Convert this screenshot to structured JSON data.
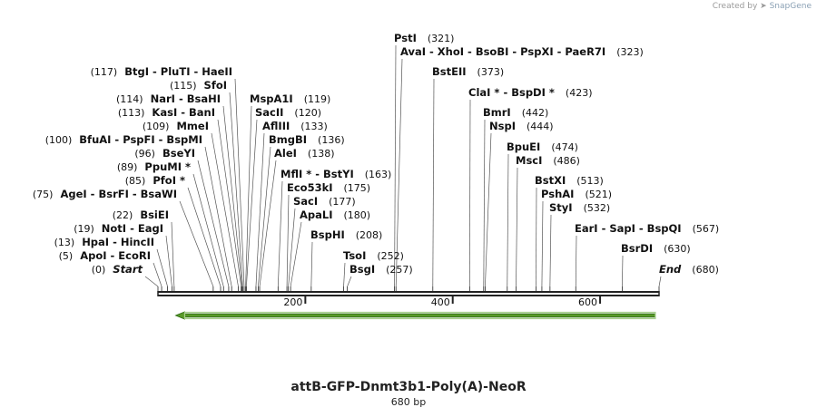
{
  "credit": {
    "prefix": "Created by",
    "brand": "SnapGene",
    "icon": "snapgene-logo-icon"
  },
  "title": "attB-GFP-Dnmt3b1-Poly(A)-NeoR",
  "subtitle": "680 bp",
  "colors": {
    "line": "#222222",
    "text": "#111111",
    "arrow_fill": "#a8d08d",
    "arrow_stroke": "#5a9a2a",
    "arrow_outline": "#2a6a10"
  },
  "axis": {
    "start": 0,
    "end": 680,
    "ticks": [
      200,
      400,
      600
    ]
  },
  "feature_arrow": {
    "start": 24,
    "end": 675,
    "direction": "reverse"
  },
  "sites": [
    {
      "label": "Start",
      "pos": 0,
      "cut": 0,
      "italic": true
    },
    {
      "label": "ApoI  -  EcoRI",
      "pos": 5,
      "cut": 5
    },
    {
      "label": "HpaI  -  HincII",
      "pos": 13,
      "cut": 13
    },
    {
      "label": "NotI  -  EagI",
      "pos": 19,
      "cut": 19
    },
    {
      "label": "BsiEI",
      "pos": 22,
      "cut": 22
    },
    {
      "label": "AgeI  -  BsrFI  -  BsaWI",
      "pos": 75,
      "cut": 75
    },
    {
      "label": "PfoI *",
      "pos": 85,
      "cut": 85
    },
    {
      "label": "PpuMI *",
      "pos": 89,
      "cut": 89
    },
    {
      "label": "BseYI",
      "pos": 96,
      "cut": 96
    },
    {
      "label": "BfuAI  -  PspFI  -  BspMI",
      "pos": 100,
      "cut": 100
    },
    {
      "label": "MmeI",
      "pos": 109,
      "cut": 109
    },
    {
      "label": "KasI  -  BanI",
      "pos": 113,
      "cut": 113
    },
    {
      "label": "NarI  -  BsaHI",
      "pos": 114,
      "cut": 114
    },
    {
      "label": "SfoI",
      "pos": 115,
      "cut": 115
    },
    {
      "label": "BtgI  -  PluTI  -  HaeII",
      "pos": 117,
      "cut": 117
    },
    {
      "label": "MspA1I",
      "pos": 119,
      "cut": 119
    },
    {
      "label": "SacII",
      "pos": 120,
      "cut": 120
    },
    {
      "label": "AflIII",
      "pos": 133,
      "cut": 133
    },
    {
      "label": "BmgBI",
      "pos": 136,
      "cut": 136
    },
    {
      "label": "AleI",
      "pos": 138,
      "cut": 138
    },
    {
      "label": "MflI *  -  BstYI",
      "pos": 163,
      "cut": 163
    },
    {
      "label": "Eco53kI",
      "pos": 175,
      "cut": 175
    },
    {
      "label": "SacI",
      "pos": 177,
      "cut": 177
    },
    {
      "label": "ApaLI",
      "pos": 180,
      "cut": 180
    },
    {
      "label": "BspHI",
      "pos": 208,
      "cut": 208
    },
    {
      "label": "TsoI",
      "pos": 252,
      "cut": 252
    },
    {
      "label": "BsgI",
      "pos": 257,
      "cut": 257
    },
    {
      "label": "PstI",
      "pos": 321,
      "cut": 321
    },
    {
      "label": "AvaI  -  XhoI  -  BsoBI  -  PspXI  -  PaeR7I",
      "pos": 323,
      "cut": 323
    },
    {
      "label": "BstEII",
      "pos": 373,
      "cut": 373
    },
    {
      "label": "ClaI *  -  BspDI *",
      "pos": 423,
      "cut": 423
    },
    {
      "label": "BmrI",
      "pos": 442,
      "cut": 442
    },
    {
      "label": "NspI",
      "pos": 444,
      "cut": 444
    },
    {
      "label": "BpuEI",
      "pos": 474,
      "cut": 474
    },
    {
      "label": "MscI",
      "pos": 486,
      "cut": 486
    },
    {
      "label": "BstXI",
      "pos": 513,
      "cut": 513
    },
    {
      "label": "PshAI",
      "pos": 521,
      "cut": 521
    },
    {
      "label": "StyI",
      "pos": 532,
      "cut": 532
    },
    {
      "label": "EarI  -  SapI  -  BspQI",
      "pos": 567,
      "cut": 567
    },
    {
      "label": "BsrDI",
      "pos": 630,
      "cut": 630
    },
    {
      "label": "End",
      "pos": 680,
      "cut": 680,
      "italic": true
    }
  ]
}
